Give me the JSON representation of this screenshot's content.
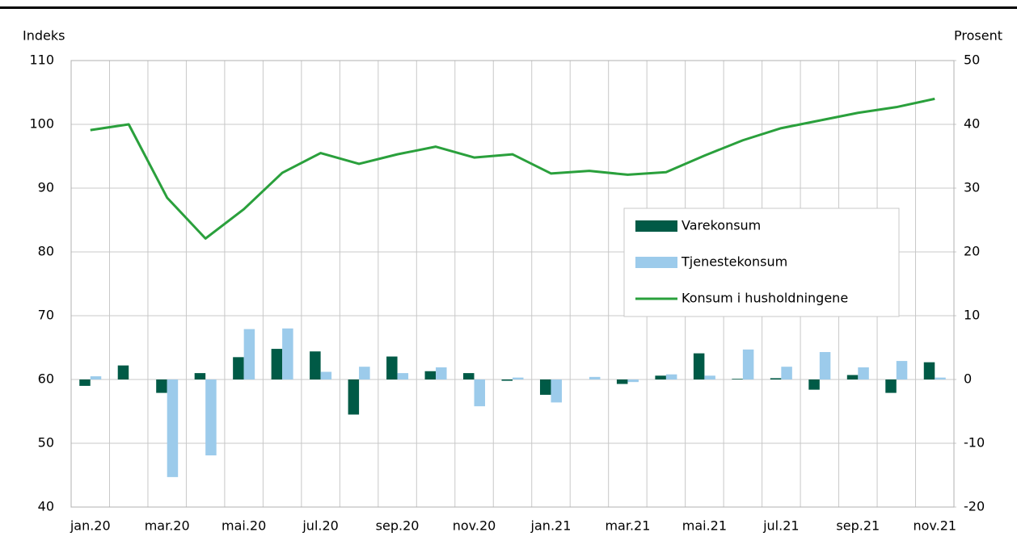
{
  "chart_data": {
    "type": "bar",
    "y_label": "Indeks",
    "y2_label": "Prosent",
    "categories": [
      "jan.20",
      null,
      "mar.20",
      null,
      "mai.20",
      null,
      "jul.20",
      null,
      "sep.20",
      null,
      "nov.20",
      null,
      "jan.21",
      null,
      "mar.21",
      null,
      "mai.21",
      null,
      "jul.21",
      null,
      "sep.21",
      null,
      "nov.21"
    ],
    "series": [
      {
        "name": "Varekonsum",
        "type": "bar",
        "axis": "y2",
        "color": "#005a46",
        "values": [
          -1.0,
          2.2,
          -2.1,
          1.0,
          3.5,
          4.8,
          4.4,
          -5.5,
          3.6,
          1.3,
          1.0,
          -0.2,
          -2.4,
          0.0,
          -0.7,
          0.6,
          4.1,
          0.1,
          0.2,
          -1.6,
          0.7,
          -2.1,
          2.7
        ]
      },
      {
        "name": "Tjenestekonsum",
        "type": "bar",
        "axis": "y2",
        "color": "#9ccbeb",
        "values": [
          0.5,
          0.0,
          -15.3,
          -11.9,
          7.9,
          8.0,
          1.2,
          2.0,
          1.0,
          1.9,
          -4.2,
          0.3,
          -3.6,
          0.4,
          -0.4,
          0.8,
          0.6,
          4.7,
          2.0,
          4.3,
          1.9,
          2.9,
          0.3
        ]
      },
      {
        "name": "Konsum i husholdningene",
        "type": "line",
        "axis": "y",
        "color": "#2aa03c",
        "values": [
          99.1,
          100.0,
          88.5,
          82.1,
          86.7,
          92.4,
          95.5,
          93.8,
          95.3,
          96.5,
          94.8,
          95.3,
          92.3,
          92.7,
          92.1,
          92.5,
          95.1,
          97.5,
          99.4,
          100.6,
          101.8,
          102.7,
          104.0
        ]
      }
    ],
    "ylim": [
      40,
      110
    ],
    "yticks": [
      40,
      50,
      60,
      70,
      80,
      90,
      100,
      110
    ],
    "y2lim": [
      -20,
      50
    ],
    "y2ticks": [
      -20,
      -10,
      0,
      10,
      20,
      30,
      40,
      50
    ],
    "grid": true,
    "legend": "right"
  }
}
